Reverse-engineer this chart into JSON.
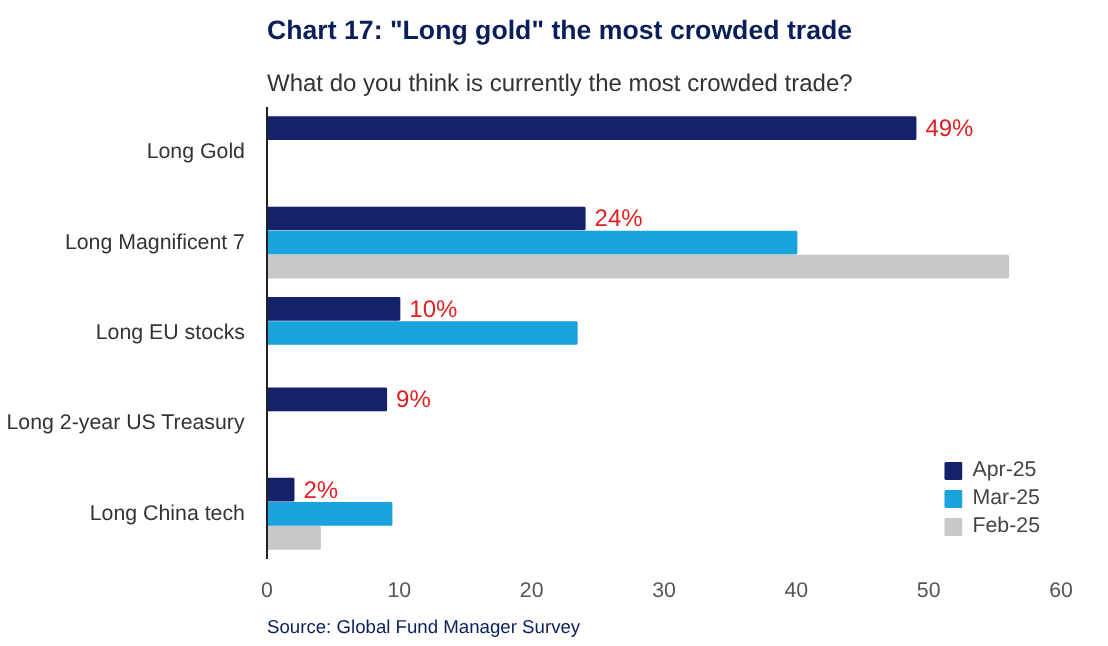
{
  "chart_data": {
    "type": "bar",
    "orientation": "horizontal",
    "title": "Chart 17: \"Long gold\" the most crowded trade",
    "subtitle": "What do you think is currently the most crowded trade?",
    "categories": [
      "Long Gold",
      "Long Magnificent 7",
      "Long EU stocks",
      "Long 2-year US Treasury",
      "Long China tech"
    ],
    "series": [
      {
        "name": "Apr-25",
        "color": "#14216b",
        "values": [
          49,
          24,
          10,
          9,
          2
        ],
        "value_labels": [
          "49%",
          "24%",
          "10%",
          "9%",
          "2%"
        ]
      },
      {
        "name": "Mar-25",
        "color": "#1aa3dc",
        "values": [
          null,
          40,
          23.4,
          null,
          9.4
        ]
      },
      {
        "name": "Feb-25",
        "color": "#c8c8c8",
        "values": [
          null,
          56,
          null,
          null,
          4
        ]
      }
    ],
    "xlim": [
      0,
      60
    ],
    "xticks": [
      0,
      10,
      20,
      30,
      40,
      50,
      60
    ],
    "grid": false,
    "legend": "bottom right",
    "annotations": [
      "Source: Global Fund Manager Survey"
    ]
  }
}
